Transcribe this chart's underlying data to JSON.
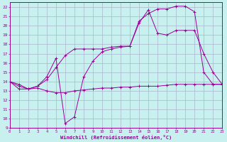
{
  "background_color": "#c8f0ee",
  "grid_color": "#aab4cc",
  "line_color": "#990099",
  "xlim": [
    0,
    23
  ],
  "ylim": [
    9,
    22.5
  ],
  "xticks": [
    0,
    1,
    2,
    3,
    4,
    5,
    6,
    7,
    8,
    9,
    10,
    11,
    12,
    13,
    14,
    15,
    16,
    17,
    18,
    19,
    20,
    21,
    22,
    23
  ],
  "yticks": [
    9,
    10,
    11,
    12,
    13,
    14,
    15,
    16,
    17,
    18,
    19,
    20,
    21,
    22
  ],
  "xlabel": "Windchill (Refroidissement éolien,°C)",
  "curve1_x": [
    0,
    1,
    2,
    3,
    4,
    5,
    6,
    7,
    8,
    9,
    10,
    11,
    12,
    13,
    14,
    15,
    16,
    17,
    18,
    19,
    20,
    21,
    22,
    23
  ],
  "curve1_y": [
    14.0,
    13.5,
    13.2,
    13.3,
    13.0,
    12.8,
    12.8,
    13.0,
    13.1,
    13.2,
    13.3,
    13.3,
    13.4,
    13.4,
    13.5,
    13.5,
    13.5,
    13.6,
    13.7,
    13.7,
    13.7,
    13.7,
    13.7,
    13.7
  ],
  "curve2_x": [
    0,
    1,
    2,
    3,
    4,
    5,
    6,
    7,
    8,
    9,
    10,
    11,
    12,
    13,
    14,
    15,
    16,
    17,
    18,
    19,
    20,
    21,
    22,
    23
  ],
  "curve2_y": [
    14.0,
    13.7,
    13.2,
    13.5,
    14.2,
    15.5,
    16.8,
    17.5,
    17.5,
    17.5,
    17.5,
    17.7,
    17.8,
    17.8,
    20.5,
    21.3,
    21.8,
    21.8,
    22.1,
    22.1,
    21.5,
    15.0,
    13.7,
    13.7
  ],
  "curve3_x": [
    0,
    1,
    2,
    3,
    4,
    5,
    6,
    7,
    8,
    9,
    10,
    11,
    12,
    13,
    14,
    15,
    16,
    17,
    18,
    19,
    20,
    21,
    22,
    23
  ],
  "curve3_y": [
    14.0,
    13.2,
    13.2,
    13.5,
    14.5,
    16.5,
    9.5,
    10.2,
    14.5,
    16.2,
    17.2,
    17.5,
    17.7,
    17.8,
    20.3,
    21.7,
    19.2,
    19.0,
    19.5,
    19.5,
    19.5,
    17.0,
    15.0,
    13.7
  ]
}
